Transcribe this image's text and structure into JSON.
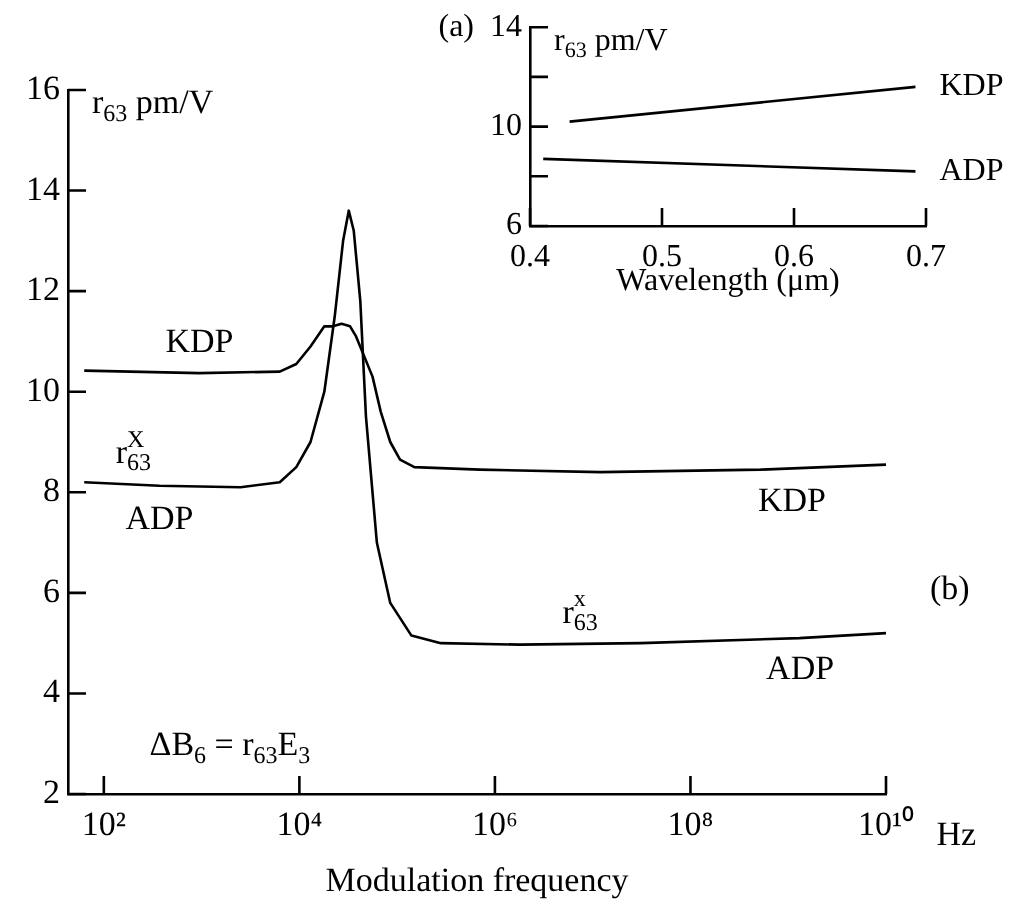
{
  "chart_data": [
    {
      "type": "line",
      "title": "(a)",
      "xlabel": "Wavelength (μm)",
      "ylabel": "r$_{63}$ pm/V",
      "xlim": [
        0.4,
        0.7
      ],
      "xticks": [
        0.4,
        0.5,
        0.6,
        0.7
      ],
      "ylim": [
        6,
        14
      ],
      "yticks": [
        6,
        {
          "value": 8,
          "label": null
        },
        10,
        {
          "value": 12,
          "label": null
        },
        14
      ],
      "series": [
        {
          "name": "KDP",
          "color": "#000000",
          "x": [
            0.43,
            0.692
          ],
          "values": [
            10.2,
            11.6
          ]
        },
        {
          "name": "ADP",
          "color": "#000000",
          "x": [
            0.41,
            0.692
          ],
          "values": [
            8.7,
            8.2
          ]
        }
      ]
    },
    {
      "type": "line",
      "title": "(b)",
      "xlabel": "Modulation frequency",
      "ylabel": "r$_{63}$ pm/V",
      "log": "x",
      "xlim": [
        43,
        10000000000.0
      ],
      "xticks": [
        {
          "value": 100,
          "label": "10²"
        },
        {
          "value": 10000,
          "label": "10⁴"
        },
        {
          "value": 1000000,
          "label": "10⁶"
        },
        {
          "value": 100000000,
          "label": "10⁸"
        },
        {
          "value": 10000000000,
          "label": "10¹⁰"
        }
      ],
      "ylim": [
        2,
        16
      ],
      "yticks": [
        2,
        4,
        6,
        8,
        10,
        12,
        14,
        16
      ],
      "series": [
        {
          "name": "KDP",
          "color": "#000000",
          "x": [
            63,
            950,
            6300,
            9300,
            13000,
            18000,
            22000,
            27000,
            33000,
            38000,
            56000,
            68000,
            85000,
            107000,
            150000,
            700000,
            12000000,
            520000000,
            10000000000
          ],
          "values": [
            10.42,
            10.37,
            10.4,
            10.55,
            10.9,
            11.3,
            11.3,
            11.35,
            11.3,
            11.1,
            10.3,
            9.6,
            9.0,
            8.65,
            8.5,
            8.45,
            8.4,
            8.45,
            8.55
          ]
        },
        {
          "name": "ADP",
          "color": "#000000",
          "x": [
            63,
            370,
            2500,
            6300,
            9300,
            13000,
            18000,
            23000,
            28000,
            32000,
            36000,
            42000,
            48000,
            62000,
            85000,
            140000,
            280000,
            1800000,
            31000000,
            1300000000,
            10000000000
          ],
          "values": [
            8.2,
            8.13,
            8.1,
            8.2,
            8.5,
            9.0,
            10.0,
            11.5,
            13.0,
            13.6,
            13.2,
            11.8,
            9.5,
            7.0,
            5.8,
            5.15,
            5.0,
            4.97,
            5.0,
            5.1,
            5.2
          ]
        }
      ],
      "annotations": [
        "KDP",
        "ADP",
        "r$^{X}$$_{63}$",
        "r$^{x}$$_{63}$",
        "ΔB$_{6}$ = r$_{63}$E$_{3}$",
        "Hz"
      ]
    }
  ]
}
